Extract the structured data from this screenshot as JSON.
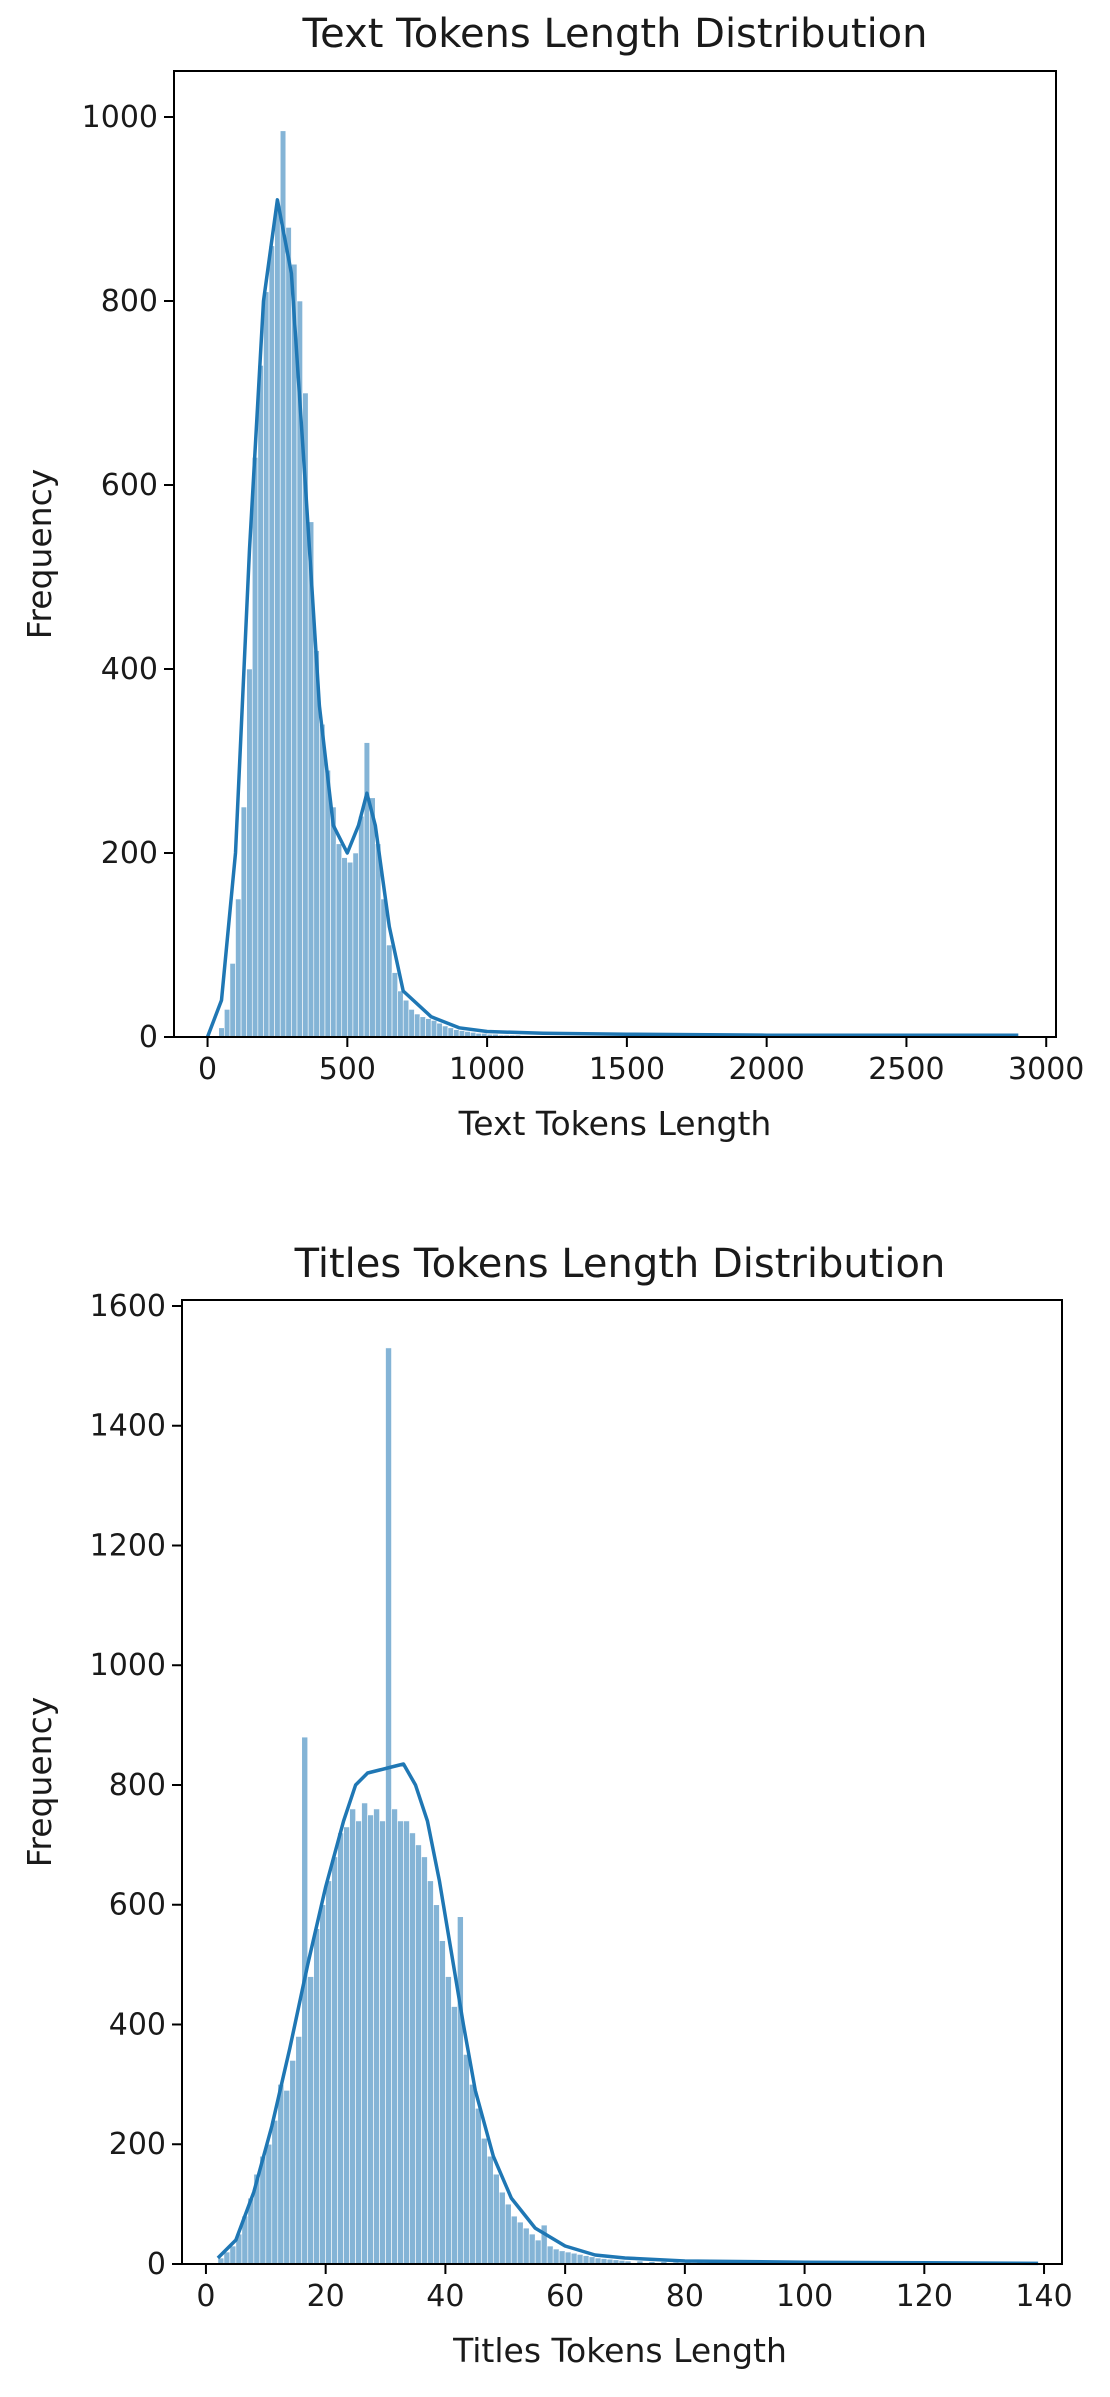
{
  "chart_data": [
    {
      "type": "histogram",
      "title": "Text Tokens Length Distribution",
      "xlabel": "Text Tokens Length",
      "ylabel": "Frequency",
      "xlim": [
        -120,
        3035
      ],
      "ylim": [
        0,
        1050
      ],
      "xticks": [
        0,
        500,
        1000,
        1500,
        2000,
        2500,
        3000
      ],
      "yticks": [
        0,
        200,
        400,
        600,
        800,
        1000
      ],
      "bin_width": 20,
      "bins": [
        {
          "x": 40,
          "freq": 10
        },
        {
          "x": 60,
          "freq": 30
        },
        {
          "x": 80,
          "freq": 80
        },
        {
          "x": 100,
          "freq": 150
        },
        {
          "x": 120,
          "freq": 250
        },
        {
          "x": 140,
          "freq": 400
        },
        {
          "x": 160,
          "freq": 630
        },
        {
          "x": 180,
          "freq": 730
        },
        {
          "x": 200,
          "freq": 810
        },
        {
          "x": 220,
          "freq": 860
        },
        {
          "x": 240,
          "freq": 900
        },
        {
          "x": 260,
          "freq": 985
        },
        {
          "x": 280,
          "freq": 880
        },
        {
          "x": 300,
          "freq": 840
        },
        {
          "x": 320,
          "freq": 800
        },
        {
          "x": 340,
          "freq": 700
        },
        {
          "x": 360,
          "freq": 560
        },
        {
          "x": 380,
          "freq": 420
        },
        {
          "x": 400,
          "freq": 340
        },
        {
          "x": 420,
          "freq": 290
        },
        {
          "x": 440,
          "freq": 250
        },
        {
          "x": 460,
          "freq": 210
        },
        {
          "x": 480,
          "freq": 195
        },
        {
          "x": 500,
          "freq": 190
        },
        {
          "x": 520,
          "freq": 200
        },
        {
          "x": 540,
          "freq": 240
        },
        {
          "x": 560,
          "freq": 320
        },
        {
          "x": 580,
          "freq": 260
        },
        {
          "x": 600,
          "freq": 210
        },
        {
          "x": 620,
          "freq": 150
        },
        {
          "x": 640,
          "freq": 100
        },
        {
          "x": 660,
          "freq": 70
        },
        {
          "x": 680,
          "freq": 50
        },
        {
          "x": 700,
          "freq": 40
        },
        {
          "x": 720,
          "freq": 30
        },
        {
          "x": 740,
          "freq": 25
        },
        {
          "x": 760,
          "freq": 22
        },
        {
          "x": 780,
          "freq": 20
        },
        {
          "x": 800,
          "freq": 18
        },
        {
          "x": 820,
          "freq": 15
        },
        {
          "x": 840,
          "freq": 12
        },
        {
          "x": 860,
          "freq": 10
        },
        {
          "x": 880,
          "freq": 8
        },
        {
          "x": 900,
          "freq": 7
        },
        {
          "x": 920,
          "freq": 6
        },
        {
          "x": 940,
          "freq": 5
        },
        {
          "x": 960,
          "freq": 4
        },
        {
          "x": 980,
          "freq": 4
        },
        {
          "x": 1000,
          "freq": 3
        },
        {
          "x": 1020,
          "freq": 3
        },
        {
          "x": 1040,
          "freq": 2
        },
        {
          "x": 1060,
          "freq": 2
        },
        {
          "x": 1080,
          "freq": 2
        },
        {
          "x": 1100,
          "freq": 2
        }
      ],
      "kde": [
        {
          "x": 0,
          "y": 0
        },
        {
          "x": 50,
          "y": 40
        },
        {
          "x": 100,
          "y": 200
        },
        {
          "x": 150,
          "y": 530
        },
        {
          "x": 200,
          "y": 800
        },
        {
          "x": 250,
          "y": 910
        },
        {
          "x": 300,
          "y": 830
        },
        {
          "x": 350,
          "y": 600
        },
        {
          "x": 400,
          "y": 360
        },
        {
          "x": 450,
          "y": 230
        },
        {
          "x": 500,
          "y": 200
        },
        {
          "x": 540,
          "y": 230
        },
        {
          "x": 570,
          "y": 265
        },
        {
          "x": 600,
          "y": 230
        },
        {
          "x": 650,
          "y": 120
        },
        {
          "x": 700,
          "y": 50
        },
        {
          "x": 800,
          "y": 22
        },
        {
          "x": 900,
          "y": 10
        },
        {
          "x": 1000,
          "y": 6
        },
        {
          "x": 1200,
          "y": 4
        },
        {
          "x": 1500,
          "y": 3
        },
        {
          "x": 2000,
          "y": 2
        },
        {
          "x": 2500,
          "y": 2
        },
        {
          "x": 2900,
          "y": 2
        }
      ],
      "color": "#1f77b4"
    },
    {
      "type": "histogram",
      "title": "Titles Tokens Length Distribution",
      "xlabel": "Titles Tokens Length",
      "ylabel": "Frequency",
      "xlim": [
        -4,
        143
      ],
      "ylim": [
        0,
        1610
      ],
      "xticks": [
        0,
        20,
        40,
        60,
        80,
        100,
        120,
        140
      ],
      "yticks": [
        0,
        200,
        400,
        600,
        800,
        1000,
        1200,
        1400,
        1600
      ],
      "bin_width": 1,
      "bins": [
        {
          "x": 2,
          "freq": 10
        },
        {
          "x": 3,
          "freq": 20
        },
        {
          "x": 4,
          "freq": 30
        },
        {
          "x": 5,
          "freq": 50
        },
        {
          "x": 6,
          "freq": 80
        },
        {
          "x": 7,
          "freq": 110
        },
        {
          "x": 8,
          "freq": 150
        },
        {
          "x": 9,
          "freq": 180
        },
        {
          "x": 10,
          "freq": 200
        },
        {
          "x": 11,
          "freq": 240
        },
        {
          "x": 12,
          "freq": 300
        },
        {
          "x": 13,
          "freq": 290
        },
        {
          "x": 14,
          "freq": 340
        },
        {
          "x": 15,
          "freq": 380
        },
        {
          "x": 16,
          "freq": 880
        },
        {
          "x": 17,
          "freq": 480
        },
        {
          "x": 18,
          "freq": 560
        },
        {
          "x": 19,
          "freq": 600
        },
        {
          "x": 20,
          "freq": 640
        },
        {
          "x": 21,
          "freq": 680
        },
        {
          "x": 22,
          "freq": 720
        },
        {
          "x": 23,
          "freq": 730
        },
        {
          "x": 24,
          "freq": 760
        },
        {
          "x": 25,
          "freq": 740
        },
        {
          "x": 26,
          "freq": 770
        },
        {
          "x": 27,
          "freq": 750
        },
        {
          "x": 28,
          "freq": 760
        },
        {
          "x": 29,
          "freq": 740
        },
        {
          "x": 30,
          "freq": 1530
        },
        {
          "x": 31,
          "freq": 760
        },
        {
          "x": 32,
          "freq": 740
        },
        {
          "x": 33,
          "freq": 740
        },
        {
          "x": 34,
          "freq": 720
        },
        {
          "x": 35,
          "freq": 700
        },
        {
          "x": 36,
          "freq": 680
        },
        {
          "x": 37,
          "freq": 640
        },
        {
          "x": 38,
          "freq": 600
        },
        {
          "x": 39,
          "freq": 540
        },
        {
          "x": 40,
          "freq": 480
        },
        {
          "x": 41,
          "freq": 430
        },
        {
          "x": 42,
          "freq": 580
        },
        {
          "x": 43,
          "freq": 350
        },
        {
          "x": 44,
          "freq": 300
        },
        {
          "x": 45,
          "freq": 260
        },
        {
          "x": 46,
          "freq": 210
        },
        {
          "x": 47,
          "freq": 180
        },
        {
          "x": 48,
          "freq": 150
        },
        {
          "x": 49,
          "freq": 120
        },
        {
          "x": 50,
          "freq": 100
        },
        {
          "x": 51,
          "freq": 80
        },
        {
          "x": 52,
          "freq": 70
        },
        {
          "x": 53,
          "freq": 60
        },
        {
          "x": 54,
          "freq": 50
        },
        {
          "x": 55,
          "freq": 40
        },
        {
          "x": 56,
          "freq": 65
        },
        {
          "x": 57,
          "freq": 30
        },
        {
          "x": 58,
          "freq": 25
        },
        {
          "x": 59,
          "freq": 22
        },
        {
          "x": 60,
          "freq": 20
        },
        {
          "x": 61,
          "freq": 18
        },
        {
          "x": 62,
          "freq": 16
        },
        {
          "x": 63,
          "freq": 14
        },
        {
          "x": 64,
          "freq": 12
        },
        {
          "x": 65,
          "freq": 10
        },
        {
          "x": 66,
          "freq": 9
        },
        {
          "x": 67,
          "freq": 8
        },
        {
          "x": 68,
          "freq": 7
        },
        {
          "x": 69,
          "freq": 6
        },
        {
          "x": 70,
          "freq": 5
        },
        {
          "x": 72,
          "freq": 5
        },
        {
          "x": 74,
          "freq": 4
        },
        {
          "x": 76,
          "freq": 4
        },
        {
          "x": 78,
          "freq": 3
        },
        {
          "x": 80,
          "freq": 3
        },
        {
          "x": 82,
          "freq": 3
        },
        {
          "x": 85,
          "freq": 2
        },
        {
          "x": 90,
          "freq": 2
        },
        {
          "x": 95,
          "freq": 2
        },
        {
          "x": 100,
          "freq": 1
        },
        {
          "x": 110,
          "freq": 1
        },
        {
          "x": 120,
          "freq": 1
        },
        {
          "x": 130,
          "freq": 1
        },
        {
          "x": 138,
          "freq": 1
        }
      ],
      "kde": [
        {
          "x": 2,
          "y": 10
        },
        {
          "x": 5,
          "y": 40
        },
        {
          "x": 8,
          "y": 120
        },
        {
          "x": 11,
          "y": 230
        },
        {
          "x": 14,
          "y": 360
        },
        {
          "x": 17,
          "y": 500
        },
        {
          "x": 20,
          "y": 630
        },
        {
          "x": 23,
          "y": 740
        },
        {
          "x": 25,
          "y": 800
        },
        {
          "x": 27,
          "y": 820
        },
        {
          "x": 29,
          "y": 825
        },
        {
          "x": 31,
          "y": 830
        },
        {
          "x": 33,
          "y": 835
        },
        {
          "x": 35,
          "y": 800
        },
        {
          "x": 37,
          "y": 740
        },
        {
          "x": 39,
          "y": 640
        },
        {
          "x": 41,
          "y": 520
        },
        {
          "x": 43,
          "y": 400
        },
        {
          "x": 45,
          "y": 290
        },
        {
          "x": 48,
          "y": 180
        },
        {
          "x": 51,
          "y": 110
        },
        {
          "x": 55,
          "y": 60
        },
        {
          "x": 60,
          "y": 30
        },
        {
          "x": 65,
          "y": 15
        },
        {
          "x": 70,
          "y": 10
        },
        {
          "x": 80,
          "y": 5
        },
        {
          "x": 100,
          "y": 3
        },
        {
          "x": 120,
          "y": 2
        },
        {
          "x": 139,
          "y": 1
        }
      ],
      "color": "#1f77b4"
    }
  ]
}
